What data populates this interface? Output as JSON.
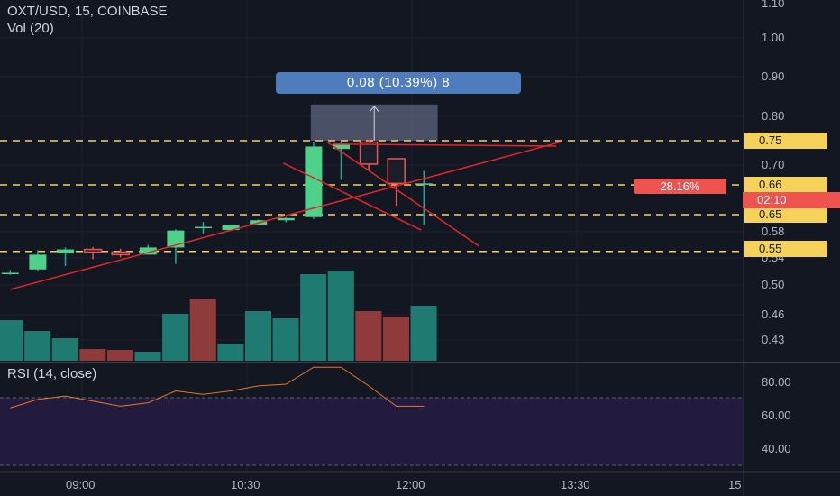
{
  "header": {
    "symbol": "OXT/USD, 15, COINBASE",
    "volume_label": "Vol (20)",
    "rsi_label": "RSI (14, close)"
  },
  "price_axis": {
    "ticks": [
      "1.10",
      "1.00",
      "0.90",
      "0.80",
      "0.70",
      "0.58",
      "0.54",
      "0.50",
      "0.46",
      "0.43"
    ],
    "badges": [
      {
        "text": "0.75",
        "color": "#f5d25a",
        "text_color": "#131722"
      },
      {
        "text": "0.66",
        "color": "#f5d25a",
        "text_color": "#131722"
      },
      {
        "text": "0.65",
        "color": "#f5d25a",
        "text_color": "#131722"
      },
      {
        "text": "0.55",
        "color": "#f5d25a",
        "text_color": "#131722"
      },
      {
        "text": "02:10",
        "color": "#ef5350",
        "text_color": "#ffffff"
      }
    ],
    "percent_badge": "28.16%"
  },
  "rsi_axis": {
    "ticks": [
      "80.00",
      "60.00",
      "40.00"
    ]
  },
  "time_axis": {
    "ticks": [
      "09:00",
      "10:30",
      "12:00",
      "13:30",
      "15"
    ]
  },
  "measure_label": "0.08 (10.39%) 8",
  "colors": {
    "up": "#26a69a",
    "down": "#ef5350",
    "rsi_line": "#e87722",
    "rsi_band": "#221b3d",
    "level": "#f5d25a",
    "trend": "#e0262b"
  },
  "chart_data": {
    "type": "candlestick",
    "ylim": [
      0.41,
      1.12
    ],
    "candles": [
      {
        "o": 0.518,
        "h": 0.522,
        "l": 0.515,
        "c": 0.518
      },
      {
        "o": 0.523,
        "h": 0.552,
        "l": 0.52,
        "c": 0.545
      },
      {
        "o": 0.547,
        "h": 0.556,
        "l": 0.528,
        "c": 0.553
      },
      {
        "o": 0.553,
        "h": 0.557,
        "l": 0.538,
        "c": 0.549
      },
      {
        "o": 0.549,
        "h": 0.554,
        "l": 0.541,
        "c": 0.545
      },
      {
        "o": 0.545,
        "h": 0.56,
        "l": 0.545,
        "c": 0.556
      },
      {
        "o": 0.556,
        "h": 0.59,
        "l": 0.531,
        "c": 0.585
      },
      {
        "o": 0.6,
        "h": 0.62,
        "l": 0.577,
        "c": 0.6
      },
      {
        "o": 0.587,
        "h": 0.608,
        "l": 0.587,
        "c": 0.608
      },
      {
        "o": 0.608,
        "h": 0.63,
        "l": 0.607,
        "c": 0.627
      },
      {
        "o": 0.627,
        "h": 0.64,
        "l": 0.619,
        "c": 0.636
      },
      {
        "o": 0.64,
        "h": 0.748,
        "l": 0.632,
        "c": 0.738
      },
      {
        "o": 0.733,
        "h": 0.748,
        "l": 0.67,
        "c": 0.742
      },
      {
        "o": 0.747,
        "h": 0.752,
        "l": 0.69,
        "c": 0.702
      },
      {
        "o": 0.713,
        "h": 0.713,
        "l": 0.653,
        "c": 0.663
      },
      {
        "o": 0.663,
        "h": 0.688,
        "l": 0.607,
        "c": 0.663
      }
    ],
    "volume": [
      {
        "v": 0.45,
        "dir": "up"
      },
      {
        "v": 0.33,
        "dir": "up"
      },
      {
        "v": 0.25,
        "dir": "up"
      },
      {
        "v": 0.13,
        "dir": "down"
      },
      {
        "v": 0.12,
        "dir": "down"
      },
      {
        "v": 0.1,
        "dir": "up"
      },
      {
        "v": 0.52,
        "dir": "up"
      },
      {
        "v": 0.69,
        "dir": "down"
      },
      {
        "v": 0.19,
        "dir": "up"
      },
      {
        "v": 0.55,
        "dir": "up"
      },
      {
        "v": 0.47,
        "dir": "up"
      },
      {
        "v": 0.96,
        "dir": "up"
      },
      {
        "v": 1.0,
        "dir": "up"
      },
      {
        "v": 0.55,
        "dir": "down"
      },
      {
        "v": 0.49,
        "dir": "down"
      },
      {
        "v": 0.61,
        "dir": "up"
      }
    ],
    "rsi": {
      "ylim": [
        25,
        95
      ],
      "overbought": 70,
      "oversold": 30,
      "values": [
        64,
        69,
        71,
        68,
        65,
        67,
        74,
        72,
        74,
        77,
        78,
        88,
        88,
        77,
        65,
        65
      ]
    },
    "levels": [
      0.75,
      0.66,
      0.65,
      0.55
    ],
    "trendlines": [
      {
        "from": [
          0.5,
          0.494
        ],
        "to": [
          20.5,
          0.748
        ]
      },
      {
        "from": [
          10.4,
          0.704
        ],
        "to": [
          15.4,
          0.587
        ]
      },
      {
        "from": [
          12.0,
          0.747
        ],
        "to": [
          17.5,
          0.558
        ]
      },
      {
        "from": [
          12.2,
          0.743
        ],
        "to": [
          20.3,
          0.739
        ]
      }
    ],
    "measure_range": {
      "x0": 11.4,
      "x1": 16.0,
      "y0": 0.75,
      "y1": 0.83
    }
  }
}
